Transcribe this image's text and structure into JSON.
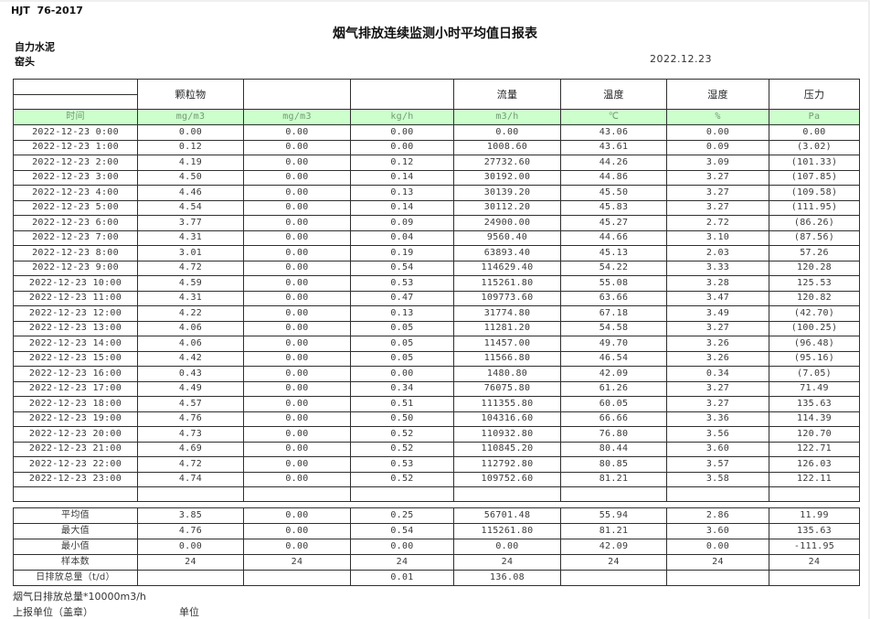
{
  "meta": {
    "standard": "HJT  76-2017",
    "title": "烟气排放连续监测小时平均值日报表",
    "company": "自力水泥",
    "location": "窑头",
    "date": "2022.12.23"
  },
  "table": {
    "group_headers": [
      "",
      "颗粒物",
      "",
      "",
      "流量",
      "温度",
      "湿度",
      "压力"
    ],
    "unit_row": [
      "时间",
      "mg/m3",
      "mg/m3",
      "kg/h",
      "m3/h",
      "℃",
      "%",
      "Pa"
    ],
    "rows": [
      [
        "2022-12-23 0:00",
        "0.00",
        "0.00",
        "0.00",
        "0.00",
        "43.06",
        "0.00",
        "0.00"
      ],
      [
        "2022-12-23 1:00",
        "0.12",
        "0.00",
        "0.00",
        "1008.60",
        "43.61",
        "0.09",
        "(3.02)"
      ],
      [
        "2022-12-23 2:00",
        "4.19",
        "0.00",
        "0.12",
        "27732.60",
        "44.26",
        "3.09",
        "(101.33)"
      ],
      [
        "2022-12-23 3:00",
        "4.50",
        "0.00",
        "0.14",
        "30192.00",
        "44.86",
        "3.27",
        "(107.85)"
      ],
      [
        "2022-12-23 4:00",
        "4.46",
        "0.00",
        "0.13",
        "30139.20",
        "45.50",
        "3.27",
        "(109.58)"
      ],
      [
        "2022-12-23 5:00",
        "4.54",
        "0.00",
        "0.14",
        "30112.20",
        "45.83",
        "3.27",
        "(111.95)"
      ],
      [
        "2022-12-23 6:00",
        "3.77",
        "0.00",
        "0.09",
        "24900.00",
        "45.27",
        "2.72",
        "(86.26)"
      ],
      [
        "2022-12-23 7:00",
        "4.31",
        "0.00",
        "0.04",
        "9560.40",
        "44.66",
        "3.10",
        "(87.56)"
      ],
      [
        "2022-12-23 8:00",
        "3.01",
        "0.00",
        "0.19",
        "63893.40",
        "45.13",
        "2.03",
        "57.26"
      ],
      [
        "2022-12-23 9:00",
        "4.72",
        "0.00",
        "0.54",
        "114629.40",
        "54.22",
        "3.33",
        "120.28"
      ],
      [
        "2022-12-23 10:00",
        "4.59",
        "0.00",
        "0.53",
        "115261.80",
        "55.08",
        "3.28",
        "125.53"
      ],
      [
        "2022-12-23 11:00",
        "4.31",
        "0.00",
        "0.47",
        "109773.60",
        "63.66",
        "3.47",
        "120.82"
      ],
      [
        "2022-12-23 12:00",
        "4.22",
        "0.00",
        "0.13",
        "31774.80",
        "67.18",
        "3.49",
        "(42.70)"
      ],
      [
        "2022-12-23 13:00",
        "4.06",
        "0.00",
        "0.05",
        "11281.20",
        "54.58",
        "3.27",
        "(100.25)"
      ],
      [
        "2022-12-23 14:00",
        "4.06",
        "0.00",
        "0.05",
        "11457.00",
        "49.70",
        "3.26",
        "(96.48)"
      ],
      [
        "2022-12-23 15:00",
        "4.42",
        "0.00",
        "0.05",
        "11566.80",
        "46.54",
        "3.26",
        "(95.16)"
      ],
      [
        "2022-12-23 16:00",
        "0.43",
        "0.00",
        "0.00",
        "1480.80",
        "42.09",
        "0.34",
        "(7.05)"
      ],
      [
        "2022-12-23 17:00",
        "4.49",
        "0.00",
        "0.34",
        "76075.80",
        "61.26",
        "3.27",
        "71.49"
      ],
      [
        "2022-12-23 18:00",
        "4.57",
        "0.00",
        "0.51",
        "111355.80",
        "60.05",
        "3.27",
        "135.63"
      ],
      [
        "2022-12-23 19:00",
        "4.76",
        "0.00",
        "0.50",
        "104316.60",
        "66.66",
        "3.36",
        "114.39"
      ],
      [
        "2022-12-23 20:00",
        "4.73",
        "0.00",
        "0.52",
        "110932.80",
        "76.80",
        "3.56",
        "120.70"
      ],
      [
        "2022-12-23 21:00",
        "4.69",
        "0.00",
        "0.52",
        "110845.20",
        "80.44",
        "3.60",
        "122.71"
      ],
      [
        "2022-12-23 22:00",
        "4.72",
        "0.00",
        "0.53",
        "112792.80",
        "80.85",
        "3.57",
        "126.03"
      ],
      [
        "2022-12-23 23:00",
        "4.74",
        "0.00",
        "0.52",
        "109752.60",
        "81.21",
        "3.58",
        "122.11"
      ]
    ],
    "summary": [
      [
        "平均值",
        "3.85",
        "0.00",
        "0.25",
        "56701.48",
        "55.94",
        "2.86",
        "11.99"
      ],
      [
        "最大值",
        "4.76",
        "0.00",
        "0.54",
        "115261.80",
        "81.21",
        "3.60",
        "135.63"
      ],
      [
        "最小值",
        "0.00",
        "0.00",
        "0.00",
        "0.00",
        "42.09",
        "0.00",
        "-111.95"
      ],
      [
        "样本数",
        "24",
        "24",
        "24",
        "24",
        "24",
        "24",
        "24"
      ],
      [
        "日排放总量（t/d）",
        "",
        "",
        "0.01",
        "136.08",
        "",
        "",
        ""
      ]
    ]
  },
  "footer": {
    "note": "烟气日排放总量*10000m3/h",
    "report_unit_label": "上报单位（盖章）",
    "unit_label": "单位"
  },
  "colors": {
    "header_green": "#ccffcc",
    "negative_red": "#e60000"
  }
}
